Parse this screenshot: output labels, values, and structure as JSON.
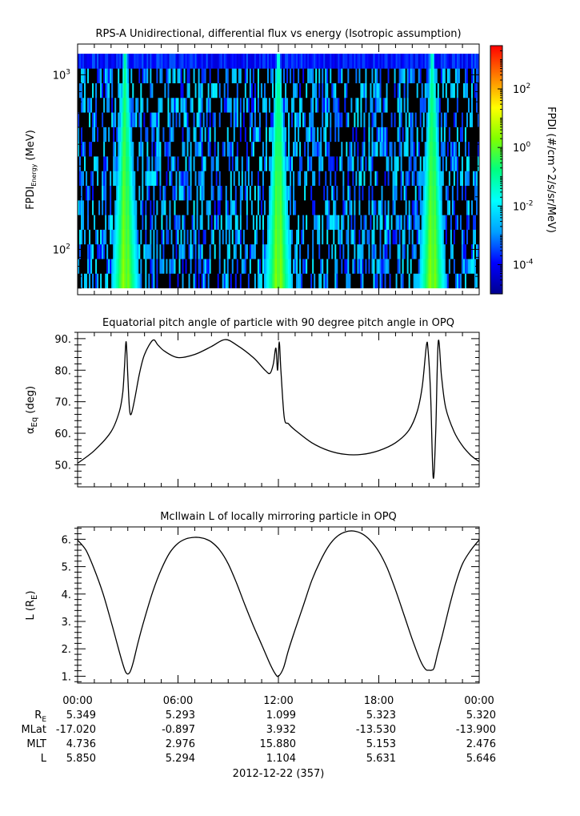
{
  "chart_data": [
    {
      "type": "heatmap",
      "title": "RPS-A Unidirectional, differential flux vs energy (Isotropic assumption)",
      "ylabel_main": "FPDI",
      "ylabel_sub": "Energy",
      "ylabel_unit": "(MeV)",
      "yscale": "log",
      "ylim": [
        55,
        1500
      ],
      "yticks": [
        {
          "value": 100,
          "base": "10",
          "exp": "2"
        },
        {
          "value": 1000,
          "base": "10",
          "exp": "3"
        }
      ],
      "colorbar_label": "FPDI (#/cm^2/s/sr/MeV)",
      "colorbar_scale": "log",
      "colorbar_range": [
        1e-05,
        3000
      ],
      "colorbar_ticks": [
        {
          "value": 0.0001,
          "base": "10",
          "exp": "-4"
        },
        {
          "value": 0.01,
          "base": "10",
          "exp": "-2"
        },
        {
          "value": 1,
          "base": "10",
          "exp": "0"
        },
        {
          "value": 100,
          "base": "10",
          "exp": "2"
        }
      ],
      "colormap": [
        "#00008f",
        "#0000ff",
        "#00a0ff",
        "#00ffff",
        "#00ff80",
        "#80ff00",
        "#ffff00",
        "#ff8000",
        "#ff0000"
      ],
      "background_color": "#000000",
      "flux_peak_times_hours": [
        2.85,
        12.0,
        21.2
      ]
    },
    {
      "type": "line",
      "title": "Equatorial pitch angle of particle with 90 degree pitch angle in OPQ",
      "ylabel_main": "α",
      "ylabel_sub": "Eq",
      "ylabel_unit": "(deg)",
      "ylim": [
        43,
        92
      ],
      "yticks": [
        50,
        60,
        70,
        80,
        90
      ],
      "ytick_labels": [
        "50.",
        "60.",
        "70.",
        "80.",
        "90."
      ],
      "x": [
        0,
        1,
        2,
        2.5,
        2.7,
        2.8,
        2.9,
        3.0,
        3.1,
        3.2,
        3.4,
        3.7,
        4.0,
        4.5,
        4.8,
        5.2,
        6.0,
        7.0,
        8.0,
        8.8,
        9.5,
        10.5,
        11.2,
        11.5,
        11.7,
        11.85,
        11.95,
        12.05,
        12.15,
        12.35,
        12.6,
        13.0,
        14.0,
        15.0,
        16.0,
        17.0,
        18.0,
        19.0,
        19.8,
        20.3,
        20.6,
        20.85,
        20.95,
        21.1,
        21.25,
        21.4,
        21.55,
        21.75,
        22.0,
        22.5,
        23.0,
        23.5,
        24.0
      ],
      "y": [
        50.5,
        54.5,
        60.5,
        67.0,
        73.0,
        81.0,
        89.0,
        78.0,
        68.0,
        66.0,
        70.5,
        79.0,
        85.0,
        89.5,
        88.0,
        86.0,
        84.0,
        85.0,
        87.5,
        89.7,
        88.0,
        84.0,
        80.0,
        79.0,
        82.0,
        87.0,
        80.0,
        89.0,
        80.0,
        65.0,
        63.0,
        61.0,
        57.0,
        54.5,
        53.3,
        53.3,
        54.5,
        57.0,
        61.0,
        67.0,
        75.0,
        88.0,
        86.0,
        72.0,
        46.0,
        60.0,
        89.0,
        78.0,
        68.0,
        60.5,
        56.0,
        53.0,
        51.0
      ]
    },
    {
      "type": "line",
      "title": "McIlwain L of locally mirroring particle in OPQ",
      "ylabel_main": "L (R",
      "ylabel_sub": "E",
      "ylabel_unit": ")",
      "ylim": [
        0.75,
        6.45
      ],
      "yticks": [
        1,
        2,
        3,
        4,
        5,
        6
      ],
      "ytick_labels": [
        "1.",
        "2.",
        "3.",
        "4.",
        "5.",
        "6."
      ],
      "x": [
        0,
        0.5,
        1,
        1.5,
        2.0,
        2.4,
        2.7,
        2.9,
        3.1,
        3.3,
        3.6,
        4.0,
        4.5,
        5.0,
        5.5,
        6.0,
        6.5,
        7.0,
        7.3,
        7.6,
        8.0,
        8.5,
        9.0,
        9.5,
        10.0,
        10.5,
        11.0,
        11.5,
        11.8,
        12.0,
        12.3,
        12.6,
        13.0,
        13.5,
        14.0,
        14.5,
        15.0,
        15.5,
        16.0,
        16.5,
        17.0,
        17.5,
        18.0,
        18.5,
        19.0,
        19.5,
        20.0,
        20.5,
        20.8,
        21.0,
        21.15,
        21.3,
        21.5,
        21.8,
        22.2,
        22.6,
        23.0,
        23.5,
        24.0
      ],
      "y": [
        5.97,
        5.6,
        4.9,
        4.05,
        3.0,
        2.1,
        1.45,
        1.12,
        1.12,
        1.45,
        2.2,
        3.1,
        4.1,
        4.9,
        5.5,
        5.85,
        6.02,
        6.07,
        6.06,
        6.02,
        5.9,
        5.6,
        5.1,
        4.4,
        3.6,
        2.85,
        2.15,
        1.45,
        1.1,
        1.0,
        1.3,
        1.95,
        2.7,
        3.6,
        4.5,
        5.2,
        5.75,
        6.1,
        6.27,
        6.3,
        6.2,
        5.95,
        5.55,
        4.95,
        4.15,
        3.25,
        2.35,
        1.55,
        1.25,
        1.22,
        1.22,
        1.3,
        1.8,
        2.5,
        3.5,
        4.4,
        5.1,
        5.6,
        5.98
      ]
    }
  ],
  "x_axis": {
    "xlim": [
      0,
      24
    ],
    "ticks": [
      0,
      6,
      12,
      18,
      24
    ],
    "tick_labels": [
      "00:00",
      "06:00",
      "12:00",
      "18:00",
      "00:00"
    ]
  },
  "ephemeris": {
    "rows": [
      {
        "label_main": "R",
        "label_sub": "E",
        "values": [
          "5.349",
          "5.293",
          "1.099",
          "5.323",
          "5.320"
        ]
      },
      {
        "label_main": "MLat",
        "label_sub": "",
        "values": [
          "-17.020",
          "-0.897",
          "3.932",
          "-13.530",
          "-13.900"
        ]
      },
      {
        "label_main": "MLT",
        "label_sub": "",
        "values": [
          "4.736",
          "2.976",
          "15.880",
          "5.153",
          "2.476"
        ]
      },
      {
        "label_main": "L",
        "label_sub": "",
        "values": [
          "5.850",
          "5.294",
          "1.104",
          "5.631",
          "5.646"
        ]
      }
    ],
    "date_label": "2012-12-22 (357)"
  }
}
